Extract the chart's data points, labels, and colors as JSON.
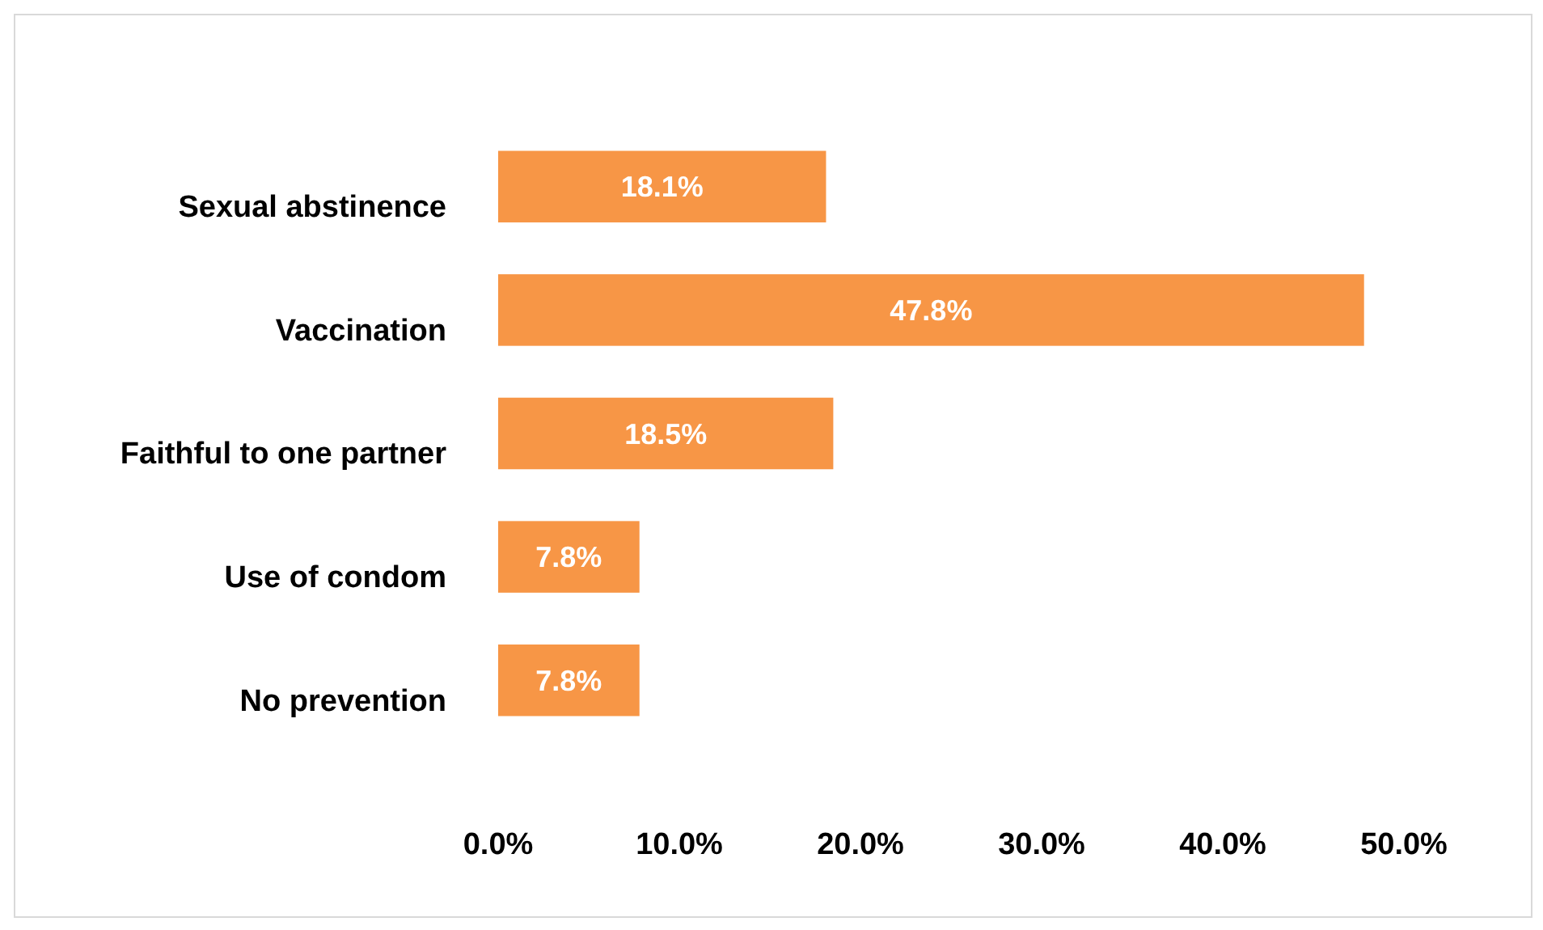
{
  "chart_data": {
    "type": "bar",
    "orientation": "horizontal",
    "categories": [
      "Sexual abstinence",
      "Vaccination",
      "Faithful to one partner",
      "Use of condom",
      "No prevention"
    ],
    "values": [
      18.1,
      47.8,
      18.5,
      7.8,
      7.8
    ],
    "value_labels": [
      "18.1%",
      "47.8%",
      "18.5%",
      "7.8%",
      "7.8%"
    ],
    "color": "#f79646",
    "xlim": [
      0,
      50
    ],
    "xticks": [
      {
        "value": 0,
        "label": "0.0%"
      },
      {
        "value": 10,
        "label": "10.0%"
      },
      {
        "value": 20,
        "label": "20.0%"
      },
      {
        "value": 30,
        "label": "30.0%"
      },
      {
        "value": 40,
        "label": "40.0%"
      },
      {
        "value": 50,
        "label": "50.0%"
      }
    ],
    "grid": false
  }
}
